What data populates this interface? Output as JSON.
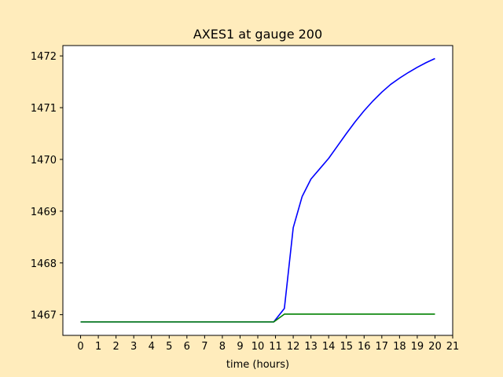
{
  "chart_data": {
    "type": "line",
    "title": "AXES1 at gauge 200",
    "xlabel": "time (hours)",
    "ylabel": "",
    "xlim": [
      -1,
      21
    ],
    "ylim": [
      1466.6,
      1472.2
    ],
    "xticks": [
      0,
      1,
      2,
      3,
      4,
      5,
      6,
      7,
      8,
      9,
      10,
      11,
      12,
      13,
      14,
      15,
      16,
      17,
      18,
      19,
      20,
      21
    ],
    "yticks": [
      1467,
      1468,
      1469,
      1470,
      1471,
      1472
    ],
    "grid": false,
    "background_color": "#ffecbc",
    "plot_background": "#ffffff",
    "series": [
      {
        "color": "#0000ff",
        "x": [
          0,
          1,
          2,
          3,
          4,
          5,
          6,
          7,
          8,
          9,
          10,
          10.9,
          11.5,
          12,
          12.5,
          13,
          13.5,
          14,
          14.5,
          15,
          15.5,
          16,
          16.5,
          17,
          17.5,
          18,
          18.5,
          19,
          19.5,
          20
        ],
        "y": [
          1466.86,
          1466.86,
          1466.86,
          1466.86,
          1466.86,
          1466.86,
          1466.86,
          1466.86,
          1466.86,
          1466.86,
          1466.86,
          1466.86,
          1467.12,
          1468.68,
          1469.28,
          1469.62,
          1469.82,
          1470.02,
          1470.26,
          1470.5,
          1470.73,
          1470.94,
          1471.13,
          1471.3,
          1471.45,
          1471.57,
          1471.68,
          1471.78,
          1471.87,
          1471.95
        ]
      },
      {
        "color": "#008000",
        "x": [
          0,
          1,
          2,
          3,
          4,
          5,
          6,
          7,
          8,
          9,
          10,
          10.9,
          11.5,
          12,
          13,
          14,
          15,
          16,
          17,
          18,
          19,
          20
        ],
        "y": [
          1466.86,
          1466.86,
          1466.86,
          1466.86,
          1466.86,
          1466.86,
          1466.86,
          1466.86,
          1466.86,
          1466.86,
          1466.86,
          1466.86,
          1467.01,
          1467.01,
          1467.01,
          1467.01,
          1467.01,
          1467.01,
          1467.01,
          1467.01,
          1467.01,
          1467.01
        ]
      }
    ]
  }
}
